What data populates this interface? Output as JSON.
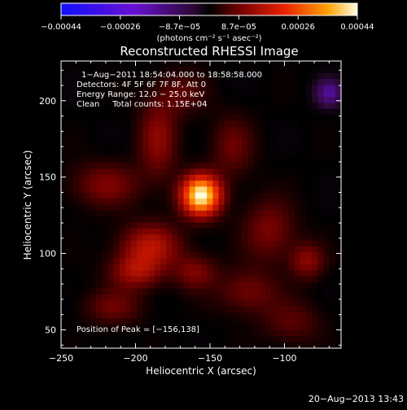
{
  "chart_data": {
    "type": "heatmap",
    "title": "Reconstructed RHESSI Image",
    "xlabel": "Heliocentric X (arcsec)",
    "ylabel": "Heliocentric Y (arcsec)",
    "xlim": [
      -250,
      -62
    ],
    "ylim": [
      38,
      226
    ],
    "x_ticks": [
      -250,
      -200,
      -150,
      -100
    ],
    "x_tick_labels": [
      "−250",
      "−200",
      "−150",
      "−100"
    ],
    "y_ticks": [
      50,
      100,
      150,
      200
    ],
    "y_tick_labels": [
      "50",
      "100",
      "150",
      "200"
    ],
    "colorbar": {
      "range": [
        -0.00044,
        0.00044
      ],
      "tick_labels": [
        "−0.00044",
        "−0.00026",
        "−8.7e−05",
        "8.7e−05",
        "0.00026",
        "0.00044"
      ],
      "units": "(photons cm⁻² s⁻¹ asec⁻²)"
    },
    "annotations": {
      "time_range": "1−Aug−2011 18:54:04.000 to 18:58:58.000",
      "detectors": "Detectors: 4F 5F 6F 7F 8F, Att 0",
      "energy_range": "Energy Range: 12.0 − 25.0 keV",
      "method_counts": "Clean     Total counts: 1.15E+04",
      "peak_position": "Position of Peak = [−156,138]"
    },
    "peak": {
      "x": -156,
      "y": 138
    },
    "sources": [
      {
        "x": -156,
        "y": 138,
        "sx": 9,
        "sy": 9,
        "amp": 1.0
      },
      {
        "x": -185,
        "y": 175,
        "sx": 9,
        "sy": 18,
        "amp": 0.25
      },
      {
        "x": -190,
        "y": 105,
        "sx": 14,
        "sy": 10,
        "amp": 0.35
      },
      {
        "x": -200,
        "y": 88,
        "sx": 12,
        "sy": 8,
        "amp": 0.3
      },
      {
        "x": -160,
        "y": 88,
        "sx": 10,
        "sy": 8,
        "amp": 0.22
      },
      {
        "x": -110,
        "y": 115,
        "sx": 12,
        "sy": 14,
        "amp": 0.22
      },
      {
        "x": -85,
        "y": 95,
        "sx": 8,
        "sy": 8,
        "amp": 0.25
      },
      {
        "x": -220,
        "y": 145,
        "sx": 16,
        "sy": 10,
        "amp": 0.22
      },
      {
        "x": -135,
        "y": 170,
        "sx": 10,
        "sy": 14,
        "amp": 0.18
      },
      {
        "x": -215,
        "y": 65,
        "sx": 14,
        "sy": 8,
        "amp": 0.18
      },
      {
        "x": -125,
        "y": 75,
        "sx": 14,
        "sy": 10,
        "amp": 0.2
      },
      {
        "x": -95,
        "y": 55,
        "sx": 14,
        "sy": 10,
        "amp": 0.15
      },
      {
        "x": -170,
        "y": 205,
        "sx": 12,
        "sy": 10,
        "amp": 0.15
      }
    ],
    "negative_spot": {
      "x": -70,
      "y": 205,
      "sx": 6,
      "sy": 6,
      "amp": -0.35
    },
    "grid": false
  },
  "footer": {
    "timestamp": "20−Aug−2013 13:43"
  }
}
